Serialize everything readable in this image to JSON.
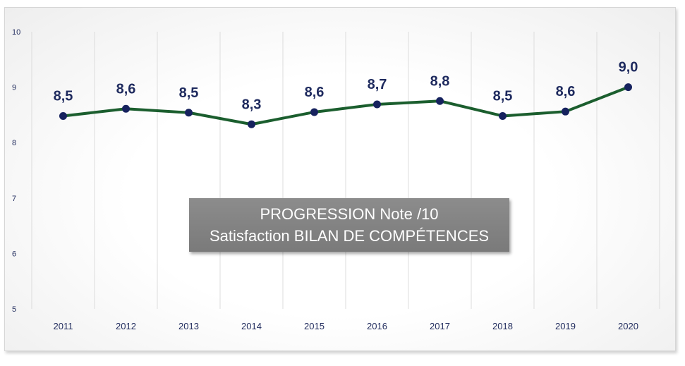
{
  "chart_data": {
    "type": "line",
    "title_line1": "PROGRESSION  Note /10",
    "title_line2": "Satisfaction BILAN DE COMPÉTENCES",
    "categories": [
      "2011",
      "2012",
      "2013",
      "2014",
      "2015",
      "2016",
      "2017",
      "2018",
      "2019",
      "2020"
    ],
    "series": [
      {
        "values": [
          8.5,
          8.6,
          8.5,
          8.3,
          8.6,
          8.7,
          8.8,
          8.5,
          8.6,
          9.0
        ],
        "labels": [
          "8,5",
          "8,6",
          "8,5",
          "8,3",
          "8,6",
          "8,7",
          "8,8",
          "8,5",
          "8,6",
          "9,0"
        ]
      }
    ],
    "plotted_values": [
      8.48,
      8.61,
      8.54,
      8.33,
      8.55,
      8.69,
      8.75,
      8.48,
      8.56,
      9.0
    ],
    "ylim": [
      5,
      10
    ],
    "yticks": [
      "5",
      "6",
      "7",
      "8",
      "9",
      "10"
    ],
    "grid": "vertical",
    "colors": {
      "line": "#1b5e2e",
      "marker": "#16225e",
      "label": "#1e2a5e",
      "grid": "#dcdcdc"
    }
  }
}
